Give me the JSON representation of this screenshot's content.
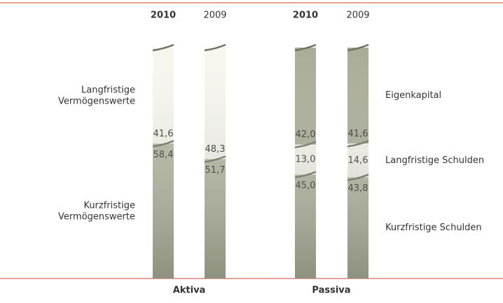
{
  "chart_data": [
    {
      "type": "stacked_bar",
      "title": "Aktiva",
      "categories": [
        "2010",
        "2009"
      ],
      "ylim": [
        0,
        100
      ],
      "label_side": "left",
      "series": [
        {
          "name": "Langfristige Vermögenswerte",
          "color": "#f6f6ef",
          "values": [
            41.6,
            48.3
          ],
          "value_labels": [
            "41,6",
            "48,3"
          ]
        },
        {
          "name": "Kurzfristige Vermögenswerte",
          "color": "#b5b8a3",
          "values": [
            58.4,
            51.7
          ],
          "value_labels": [
            "58,4",
            "51,7"
          ]
        }
      ]
    },
    {
      "type": "stacked_bar",
      "title": "Passiva",
      "categories": [
        "2010",
        "2009"
      ],
      "ylim": [
        0,
        100
      ],
      "label_side": "right",
      "series": [
        {
          "name": "Eigenkapital",
          "color": "#a9ac96",
          "values": [
            42.0,
            41.6
          ],
          "value_labels": [
            "42,0",
            "41,6"
          ]
        },
        {
          "name": "Langfristige Schulden",
          "color": "#f6f6ef",
          "values": [
            13.0,
            14.6
          ],
          "value_labels": [
            "13,0",
            "14,6"
          ]
        },
        {
          "name": "Kurzfristige Schulden",
          "color": "#b5b8a3",
          "values": [
            45.0,
            43.8
          ],
          "value_labels": [
            "45,0",
            "43,8"
          ]
        }
      ]
    }
  ]
}
